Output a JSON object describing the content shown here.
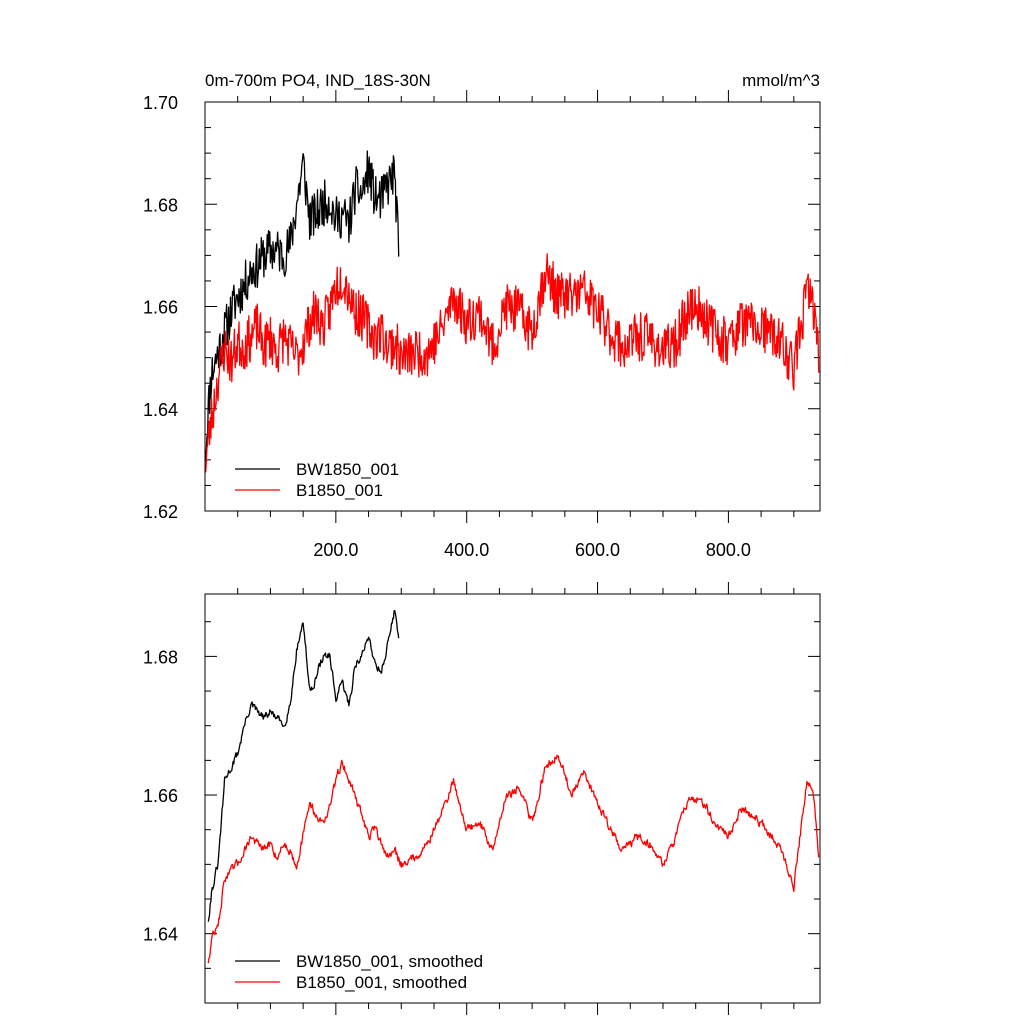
{
  "chart_data": [
    {
      "type": "line",
      "title": "0m-700m PO4, IND_18S-30N",
      "units": "mmol/m^3",
      "xlim": [
        0,
        940
      ],
      "ylim": [
        1.62,
        1.7
      ],
      "x_major_ticks": [
        200,
        400,
        600,
        800
      ],
      "x_tick_labels": [
        "200.0",
        "400.0",
        "600.0",
        "800.0"
      ],
      "y_major_ticks": [
        1.62,
        1.64,
        1.66,
        1.68,
        1.7
      ],
      "y_tick_labels": [
        "1.62",
        "1.64",
        "1.66",
        "1.68",
        "1.70"
      ],
      "legend_position": "bottom-left",
      "series": [
        {
          "name": "BW1850_001",
          "color": "#000000",
          "anchors": [
            [
              1,
              1.632
            ],
            [
              5,
              1.64
            ],
            [
              10,
              1.647
            ],
            [
              20,
              1.651
            ],
            [
              30,
              1.655
            ],
            [
              40,
              1.659
            ],
            [
              50,
              1.662
            ],
            [
              60,
              1.664
            ],
            [
              70,
              1.667
            ],
            [
              80,
              1.668
            ],
            [
              90,
              1.67
            ],
            [
              100,
              1.671
            ],
            [
              110,
              1.671
            ],
            [
              120,
              1.67
            ],
            [
              130,
              1.672
            ],
            [
              140,
              1.68
            ],
            [
              150,
              1.688
            ],
            [
              160,
              1.677
            ],
            [
              170,
              1.678
            ],
            [
              180,
              1.68
            ],
            [
              190,
              1.681
            ],
            [
              200,
              1.677
            ],
            [
              210,
              1.678
            ],
            [
              220,
              1.676
            ],
            [
              230,
              1.683
            ],
            [
              240,
              1.682
            ],
            [
              250,
              1.687
            ],
            [
              260,
              1.681
            ],
            [
              270,
              1.681
            ],
            [
              280,
              1.684
            ],
            [
              290,
              1.686
            ],
            [
              296,
              1.67
            ]
          ],
          "noise": 0.0045,
          "seed": 11
        },
        {
          "name": "B1850_001",
          "color": "#ff0000",
          "anchors": [
            [
              1,
              1.63
            ],
            [
              10,
              1.638
            ],
            [
              20,
              1.646
            ],
            [
              30,
              1.652
            ],
            [
              40,
              1.649
            ],
            [
              50,
              1.653
            ],
            [
              60,
              1.652
            ],
            [
              70,
              1.654
            ],
            [
              80,
              1.656
            ],
            [
              90,
              1.652
            ],
            [
              100,
              1.654
            ],
            [
              110,
              1.651
            ],
            [
              120,
              1.654
            ],
            [
              130,
              1.652
            ],
            [
              140,
              1.65
            ],
            [
              150,
              1.653
            ],
            [
              160,
              1.657
            ],
            [
              170,
              1.659
            ],
            [
              180,
              1.656
            ],
            [
              190,
              1.659
            ],
            [
              200,
              1.664
            ],
            [
              210,
              1.666
            ],
            [
              220,
              1.663
            ],
            [
              230,
              1.659
            ],
            [
              240,
              1.658
            ],
            [
              250,
              1.656
            ],
            [
              260,
              1.654
            ],
            [
              270,
              1.655
            ],
            [
              280,
              1.652
            ],
            [
              290,
              1.653
            ],
            [
              300,
              1.65
            ],
            [
              320,
              1.651
            ],
            [
              340,
              1.651
            ],
            [
              360,
              1.655
            ],
            [
              380,
              1.662
            ],
            [
              400,
              1.657
            ],
            [
              420,
              1.659
            ],
            [
              440,
              1.652
            ],
            [
              460,
              1.66
            ],
            [
              480,
              1.659
            ],
            [
              500,
              1.655
            ],
            [
              520,
              1.667
            ],
            [
              540,
              1.662
            ],
            [
              560,
              1.662
            ],
            [
              580,
              1.663
            ],
            [
              600,
              1.659
            ],
            [
              620,
              1.655
            ],
            [
              640,
              1.652
            ],
            [
              660,
              1.654
            ],
            [
              680,
              1.654
            ],
            [
              700,
              1.651
            ],
            [
              720,
              1.653
            ],
            [
              740,
              1.66
            ],
            [
              760,
              1.659
            ],
            [
              780,
              1.655
            ],
            [
              800,
              1.653
            ],
            [
              820,
              1.657
            ],
            [
              840,
              1.656
            ],
            [
              860,
              1.655
            ],
            [
              880,
              1.653
            ],
            [
              900,
              1.648
            ],
            [
              920,
              1.663
            ],
            [
              930,
              1.66
            ],
            [
              938,
              1.651
            ]
          ],
          "noise": 0.0048,
          "seed": 23
        }
      ]
    },
    {
      "type": "line",
      "xlim": [
        0,
        940
      ],
      "ylim": [
        1.63,
        1.689
      ],
      "x_major_ticks": [
        200,
        400,
        600,
        800
      ],
      "y_major_ticks": [
        1.64,
        1.66,
        1.68
      ],
      "y_tick_labels": [
        "1.64",
        "1.66",
        "1.68"
      ],
      "legend_position": "bottom-left",
      "series": [
        {
          "name": "BW1850_001, smoothed",
          "color": "#000000",
          "anchors": [
            [
              5,
              1.642
            ],
            [
              10,
              1.646
            ],
            [
              20,
              1.65
            ],
            [
              30,
              1.662
            ],
            [
              40,
              1.664
            ],
            [
              50,
              1.666
            ],
            [
              60,
              1.67
            ],
            [
              70,
              1.673
            ],
            [
              80,
              1.672
            ],
            [
              90,
              1.671
            ],
            [
              100,
              1.672
            ],
            [
              110,
              1.671
            ],
            [
              120,
              1.67
            ],
            [
              130,
              1.673
            ],
            [
              140,
              1.681
            ],
            [
              150,
              1.685
            ],
            [
              160,
              1.675
            ],
            [
              170,
              1.677
            ],
            [
              180,
              1.68
            ],
            [
              190,
              1.68
            ],
            [
              200,
              1.674
            ],
            [
              210,
              1.676
            ],
            [
              220,
              1.673
            ],
            [
              230,
              1.679
            ],
            [
              240,
              1.68
            ],
            [
              250,
              1.683
            ],
            [
              260,
              1.679
            ],
            [
              270,
              1.678
            ],
            [
              280,
              1.682
            ],
            [
              290,
              1.687
            ],
            [
              296,
              1.682
            ]
          ],
          "noise": 0.0012,
          "seed": 31
        },
        {
          "name": "B1850_001, smoothed",
          "color": "#ff0000",
          "anchors": [
            [
              5,
              1.636
            ],
            [
              12,
              1.64
            ],
            [
              20,
              1.641
            ],
            [
              30,
              1.648
            ],
            [
              40,
              1.649
            ],
            [
              50,
              1.65
            ],
            [
              60,
              1.652
            ],
            [
              70,
              1.654
            ],
            [
              80,
              1.653
            ],
            [
              90,
              1.652
            ],
            [
              100,
              1.653
            ],
            [
              110,
              1.651
            ],
            [
              120,
              1.653
            ],
            [
              130,
              1.652
            ],
            [
              140,
              1.65
            ],
            [
              150,
              1.654
            ],
            [
              160,
              1.659
            ],
            [
              170,
              1.657
            ],
            [
              180,
              1.656
            ],
            [
              190,
              1.658
            ],
            [
              200,
              1.662
            ],
            [
              210,
              1.665
            ],
            [
              220,
              1.662
            ],
            [
              230,
              1.66
            ],
            [
              240,
              1.657
            ],
            [
              250,
              1.654
            ],
            [
              260,
              1.655
            ],
            [
              270,
              1.653
            ],
            [
              280,
              1.651
            ],
            [
              290,
              1.652
            ],
            [
              300,
              1.65
            ],
            [
              320,
              1.651
            ],
            [
              340,
              1.653
            ],
            [
              360,
              1.657
            ],
            [
              380,
              1.662
            ],
            [
              400,
              1.655
            ],
            [
              420,
              1.656
            ],
            [
              440,
              1.652
            ],
            [
              460,
              1.66
            ],
            [
              480,
              1.661
            ],
            [
              500,
              1.656
            ],
            [
              520,
              1.664
            ],
            [
              540,
              1.666
            ],
            [
              560,
              1.66
            ],
            [
              580,
              1.663
            ],
            [
              600,
              1.659
            ],
            [
              620,
              1.655
            ],
            [
              640,
              1.652
            ],
            [
              660,
              1.654
            ],
            [
              680,
              1.653
            ],
            [
              700,
              1.65
            ],
            [
              720,
              1.654
            ],
            [
              740,
              1.66
            ],
            [
              760,
              1.659
            ],
            [
              780,
              1.656
            ],
            [
              800,
              1.654
            ],
            [
              820,
              1.658
            ],
            [
              840,
              1.657
            ],
            [
              860,
              1.655
            ],
            [
              880,
              1.652
            ],
            [
              900,
              1.647
            ],
            [
              920,
              1.662
            ],
            [
              930,
              1.66
            ],
            [
              938,
              1.651
            ]
          ],
          "noise": 0.0012,
          "seed": 47
        }
      ]
    }
  ]
}
